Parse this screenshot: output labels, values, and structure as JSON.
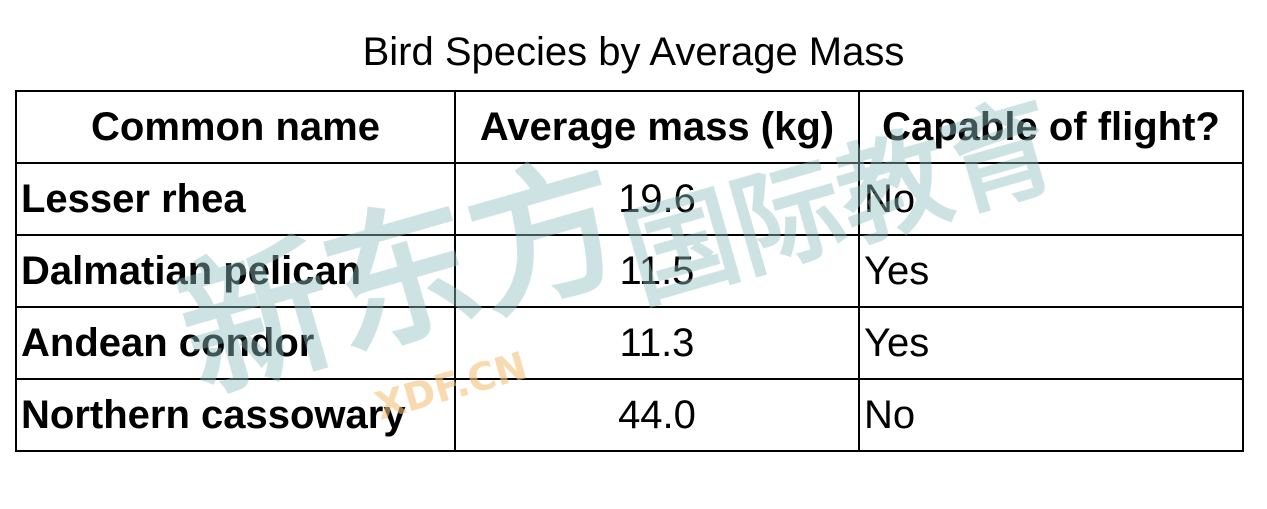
{
  "caption": "Bird Species by Average Mass",
  "table": {
    "headers": [
      "Common name",
      "Average mass (kg)",
      "Capable of flight?"
    ],
    "rows": [
      [
        "Lesser rhea",
        "19.6",
        "No"
      ],
      [
        "Dalmatian pelican",
        "11.5",
        "Yes"
      ],
      [
        "Andean condor",
        "11.3",
        "Yes"
      ],
      [
        "Northern cassowary",
        "44.0",
        "No"
      ]
    ]
  },
  "watermark": {
    "main_text": "新东方",
    "secondary_text": "国际教育",
    "site_text": "XDF.CN",
    "color": "#8fbfbf"
  }
}
